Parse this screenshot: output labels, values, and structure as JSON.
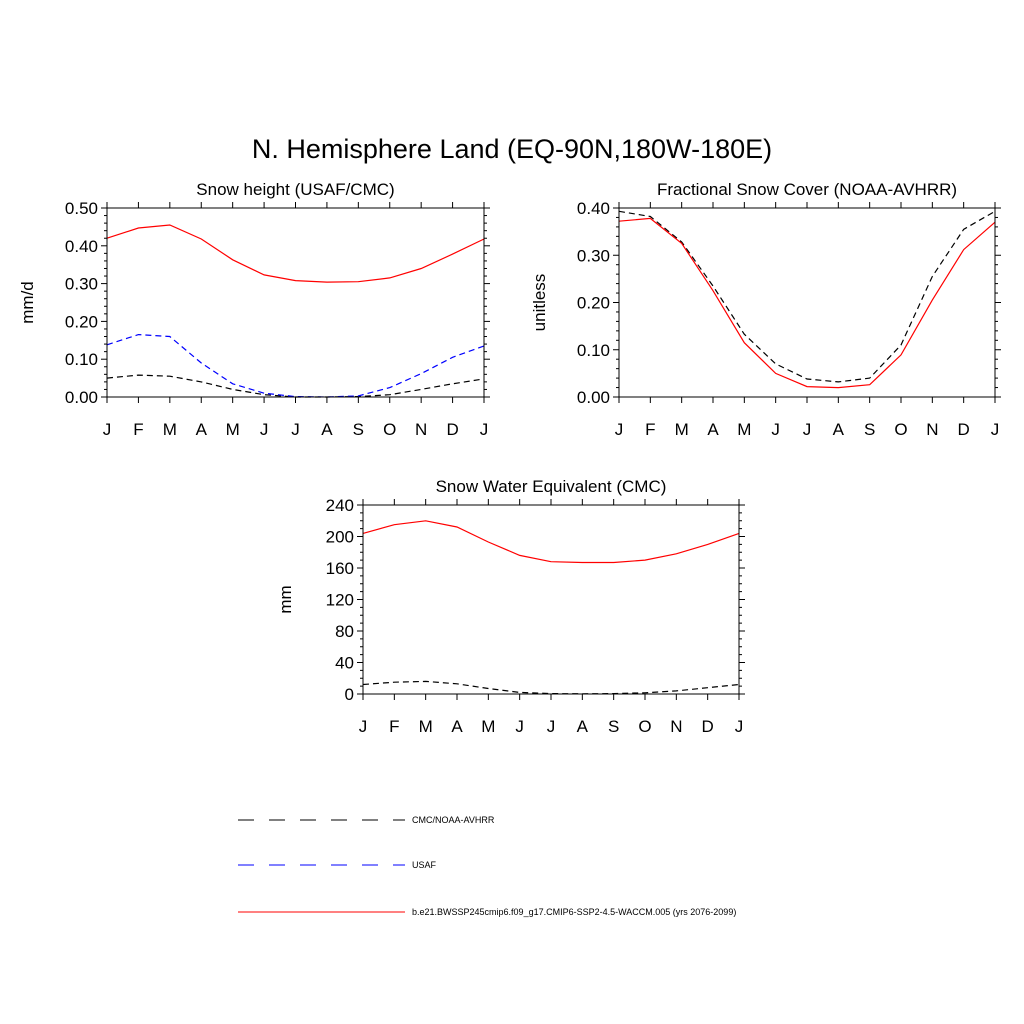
{
  "figure_title": "N. Hemisphere Land (EQ-90N,180W-180E)",
  "month_labels": [
    "J",
    "F",
    "M",
    "A",
    "M",
    "J",
    "J",
    "A",
    "S",
    "O",
    "N",
    "D",
    "J"
  ],
  "legend": [
    {
      "label": "CMC/NOAA-AVHRR",
      "color": "#000000",
      "dashed": true
    },
    {
      "label": "USAF",
      "color": "#0000ff",
      "dashed": true
    },
    {
      "label": "b.e21.BWSSP245cmip6.f09_g17.CMIP6-SSP2-4.5-WACCM.005 (yrs 2076-2099)",
      "color": "#ff0000",
      "dashed": false
    }
  ],
  "chart_data": [
    {
      "type": "line",
      "title": "Snow height (USAF/CMC)",
      "xlabel": "",
      "ylabel": "mm/d",
      "categories": [
        "J",
        "F",
        "M",
        "A",
        "M",
        "J",
        "J",
        "A",
        "S",
        "O",
        "N",
        "D",
        "J"
      ],
      "ylim": [
        0,
        0.5
      ],
      "yticks": [
        "0.00",
        "0.10",
        "0.20",
        "0.30",
        "0.40",
        "0.50"
      ],
      "series": [
        {
          "name": "CMC/NOAA-AVHRR",
          "color": "#000000",
          "dashed": true,
          "values": [
            0.05,
            0.058,
            0.055,
            0.04,
            0.02,
            0.006,
            0.0,
            0.0,
            0.001,
            0.006,
            0.02,
            0.035,
            0.048
          ]
        },
        {
          "name": "USAF",
          "color": "#0000ff",
          "dashed": true,
          "values": [
            0.138,
            0.165,
            0.16,
            0.09,
            0.035,
            0.01,
            0.001,
            0.0,
            0.003,
            0.025,
            0.062,
            0.105,
            0.135
          ]
        },
        {
          "name": "b.e21.BWSSP245cmip6.f09_g17.CMIP6-SSP2-4.5-WACCM.005 (yrs 2076-2099)",
          "color": "#ff0000",
          "dashed": false,
          "values": [
            0.42,
            0.447,
            0.455,
            0.418,
            0.363,
            0.323,
            0.308,
            0.304,
            0.305,
            0.315,
            0.34,
            0.378,
            0.418
          ]
        }
      ]
    },
    {
      "type": "line",
      "title": "Fractional Snow Cover (NOAA-AVHRR)",
      "xlabel": "",
      "ylabel": "unitless",
      "categories": [
        "J",
        "F",
        "M",
        "A",
        "M",
        "J",
        "J",
        "A",
        "S",
        "O",
        "N",
        "D",
        "J"
      ],
      "ylim": [
        0,
        0.4
      ],
      "yticks": [
        "0.00",
        "0.10",
        "0.20",
        "0.30",
        "0.40"
      ],
      "series": [
        {
          "name": "CMC/NOAA-AVHRR",
          "color": "#000000",
          "dashed": true,
          "values": [
            0.393,
            0.382,
            0.328,
            0.235,
            0.133,
            0.07,
            0.038,
            0.032,
            0.04,
            0.11,
            0.255,
            0.355,
            0.393
          ]
        },
        {
          "name": "b.e21.BWSSP245cmip6.f09_g17.CMIP6-SSP2-4.5-WACCM.005 (yrs 2076-2099)",
          "color": "#ff0000",
          "dashed": false,
          "values": [
            0.372,
            0.378,
            0.325,
            0.225,
            0.115,
            0.05,
            0.022,
            0.02,
            0.026,
            0.089,
            0.205,
            0.312,
            0.37
          ]
        }
      ]
    },
    {
      "type": "line",
      "title": "Snow Water Equivalent (CMC)",
      "xlabel": "",
      "ylabel": "mm",
      "categories": [
        "J",
        "F",
        "M",
        "A",
        "M",
        "J",
        "J",
        "A",
        "S",
        "O",
        "N",
        "D",
        "J"
      ],
      "ylim": [
        0,
        240
      ],
      "yticks": [
        "0",
        "40",
        "80",
        "120",
        "160",
        "200",
        "240"
      ],
      "series": [
        {
          "name": "CMC/NOAA-AVHRR",
          "color": "#000000",
          "dashed": true,
          "values": [
            12,
            15,
            16,
            13,
            7,
            2,
            0.5,
            0.3,
            0.5,
            1.5,
            4,
            8,
            12
          ]
        },
        {
          "name": "b.e21.BWSSP245cmip6.f09_g17.CMIP6-SSP2-4.5-WACCM.005 (yrs 2076-2099)",
          "color": "#ff0000",
          "dashed": false,
          "values": [
            204,
            215,
            220,
            212,
            193,
            176,
            168,
            167,
            167,
            170,
            178,
            190,
            204
          ]
        }
      ]
    }
  ]
}
